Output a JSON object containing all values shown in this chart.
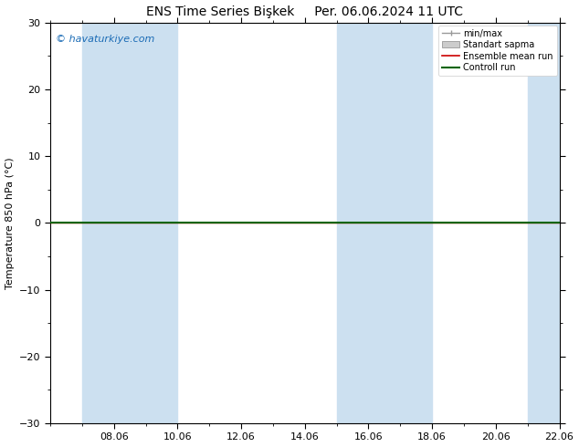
{
  "title_left": "ENS Time Series Bişkek",
  "title_right": "Per. 06.06.2024 11 UTC",
  "ylabel": "Temperature 850 hPa (°C)",
  "ylim": [
    -30,
    30
  ],
  "yticks": [
    -30,
    -20,
    -10,
    0,
    10,
    20,
    30
  ],
  "x_start_date": "06.06",
  "x_end_date": "22.06",
  "x_tick_labels": [
    "08.06",
    "10.06",
    "12.06",
    "14.06",
    "16.06",
    "18.06",
    "20.06",
    "22.06"
  ],
  "x_tick_positions": [
    2,
    4,
    6,
    8,
    10,
    12,
    14,
    16
  ],
  "xlim": [
    0,
    16
  ],
  "shaded_bands": [
    [
      1.0,
      3.0
    ],
    [
      3.0,
      4.0
    ],
    [
      9.0,
      11.0
    ],
    [
      11.0,
      12.0
    ],
    [
      15.0,
      16.0
    ]
  ],
  "shade_color": "#cce0f0",
  "ensemble_mean_color": "#cc0000",
  "control_run_color": "#006400",
  "watermark_text": "© havaturkiye.com",
  "watermark_color": "#1a6bb5",
  "legend_labels": [
    "min/max",
    "Standart sapma",
    "Ensemble mean run",
    "Controll run"
  ],
  "bg_color": "#ffffff",
  "line_value": 0.0,
  "font_size_title": 10,
  "font_size_axis": 8,
  "font_size_tick": 8,
  "font_size_legend": 7,
  "font_size_watermark": 8
}
